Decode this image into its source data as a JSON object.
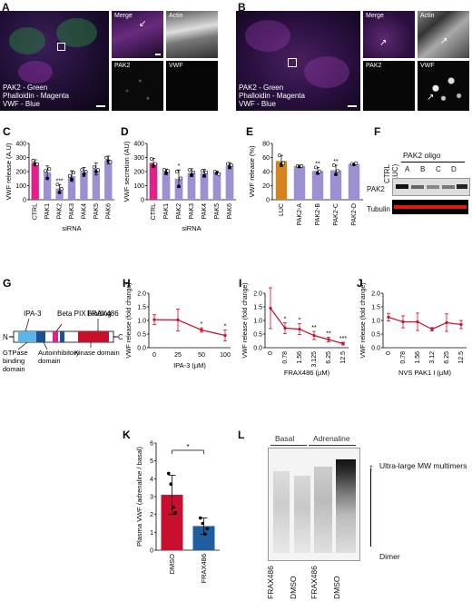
{
  "panels": {
    "A": {
      "letter": "A",
      "main_legend": [
        "PAK2 - Green",
        "Phalloidin - Magenta",
        "VWF - Blue"
      ],
      "sub_titles": [
        "Merge",
        "Actin",
        "PAK2",
        "VWF"
      ]
    },
    "B": {
      "letter": "B",
      "main_legend": [
        "PAK2 - Green",
        "Phalloidin - Magenta",
        "VWF - Blue"
      ],
      "sub_titles": [
        "Merge",
        "Actin",
        "PAK2",
        "VWF"
      ]
    },
    "C": {
      "letter": "C",
      "ylabel": "VWF release (A.U)",
      "xlabel": "siRNA",
      "yticks": [
        "0",
        "100",
        "200",
        "300",
        "400"
      ],
      "categories": [
        "CTRL",
        "PAK1",
        "PAK2",
        "PAK3",
        "PAK4",
        "PAK5",
        "PAK6"
      ],
      "sig": [
        "",
        "",
        "***",
        "",
        "",
        "",
        ""
      ]
    },
    "D": {
      "letter": "D",
      "ylabel": "VWF secretion (AU)",
      "xlabel": "siRNA",
      "yticks": [
        "0",
        "100",
        "200",
        "300",
        "400"
      ],
      "categories": [
        "CTRL",
        "PAK1",
        "PAK2",
        "PAK3",
        "PAK4",
        "PAK5",
        "PAK6"
      ],
      "sig": [
        "",
        "",
        "*",
        "",
        "",
        "",
        ""
      ]
    },
    "E": {
      "letter": "E",
      "ylabel": "VWF release (%)",
      "yticks": [
        "0",
        "20",
        "40",
        "60",
        "80"
      ],
      "categories": [
        "LUC",
        "PAK2-A",
        "PAK2-B",
        "PAK2-C",
        "PAK2-D"
      ],
      "sig": [
        "",
        "",
        "**",
        "**",
        ""
      ]
    },
    "F": {
      "letter": "F",
      "ctrl_label": "CTRL (LUC)",
      "oligo_label": "PAK2 oligo",
      "lanes": [
        "A",
        "B",
        "C",
        "D"
      ],
      "row_labels": [
        "PAK2",
        "Tubulin"
      ]
    },
    "G": {
      "letter": "G",
      "labels": {
        "n": "N",
        "c": "C",
        "ipa3": "IPA-3",
        "betapix": "Beta PIX binding",
        "frax": "FRAX486",
        "gtpase": "GTPase binding domain",
        "auto": "Autoinhibitory domain",
        "kinase": "Kinase domain"
      }
    },
    "H": {
      "letter": "H",
      "ylabel": "VWF release (fold change)",
      "xlabel": "IPA-3 (µM)",
      "yticks": [
        "0.0",
        "0.5",
        "1.0",
        "1.5",
        "2.0"
      ],
      "xticks": [
        "0",
        "25",
        "50",
        "100"
      ],
      "sig": [
        "",
        "",
        "*",
        "*"
      ]
    },
    "I": {
      "letter": "I",
      "ylabel": "VWF release (fold change)",
      "xlabel": "FRAX486 (µM)",
      "yticks": [
        "0.0",
        "0.5",
        "1.0",
        "1.5",
        "2.0"
      ],
      "xticks": [
        "0",
        "0.78",
        "1.56",
        "3.125",
        "6.25",
        "12.5"
      ],
      "sig": [
        "",
        "*",
        "*",
        "**",
        "**",
        "***"
      ]
    },
    "J": {
      "letter": "J",
      "ylabel": "VWF release (fold change)",
      "xlabel": "NVS PAK1 I (µM)",
      "yticks": [
        "0.0",
        "0.5",
        "1.0",
        "1.5",
        "2.0"
      ],
      "xticks": [
        "0",
        "0.78",
        "1.56",
        "3.12",
        "6.25",
        "12.5"
      ]
    },
    "K": {
      "letter": "K",
      "ylabel": "Plasma VWF (adrenaline / basal)",
      "yticks": [
        "0",
        "1",
        "2",
        "3",
        "4",
        "5",
        "6"
      ],
      "categories": [
        "DMSO",
        "FRAX486"
      ],
      "sig": "*"
    },
    "L": {
      "letter": "L",
      "basal": "Basal",
      "adrenaline": "Adrenaline",
      "lanes": [
        "FRAX486",
        "DMSO",
        "FRAX486",
        "DMSO"
      ],
      "arrow_label": "Ultra-large MW multimers",
      "dimer_label": "Dimer"
    }
  },
  "chart_data": [
    {
      "panel": "C",
      "type": "bar",
      "categories": [
        "CTRL",
        "PAK1",
        "PAK2",
        "PAK3",
        "PAK4",
        "PAK5",
        "PAK6"
      ],
      "values": [
        262,
        195,
        80,
        168,
        198,
        218,
        282
      ],
      "errors": [
        22,
        45,
        28,
        38,
        32,
        42,
        28
      ],
      "points": [
        [
          278,
          255,
          252
        ],
        [
          205,
          152,
          218
        ],
        [
          108,
          52,
          78
        ],
        [
          170,
          145,
          192
        ],
        [
          212,
          180,
          200
        ],
        [
          232,
          200,
          212
        ],
        [
          298,
          275,
          268
        ]
      ],
      "colors": [
        "#e0218a",
        "#9d8fd1",
        "#9d8fd1",
        "#9d8fd1",
        "#9d8fd1",
        "#9d8fd1",
        "#9d8fd1"
      ],
      "ylim": [
        0,
        400
      ],
      "ylabel": "VWF release (A.U)",
      "xlabel": "siRNA"
    },
    {
      "panel": "D",
      "type": "bar",
      "categories": [
        "CTRL",
        "PAK1",
        "PAK2",
        "PAK3",
        "PAK4",
        "PAK5",
        "PAK6"
      ],
      "values": [
        262,
        198,
        150,
        192,
        188,
        192,
        242
      ],
      "errors": [
        32,
        20,
        62,
        28,
        28,
        12,
        22
      ],
      "points": [
        [
          290,
          240,
          255
        ],
        [
          212,
          190,
          205
        ],
        [
          200,
          95,
          152
        ],
        [
          212,
          175,
          195
        ],
        [
          205,
          170,
          195
        ],
        [
          200,
          190,
          182
        ],
        [
          255,
          232,
          245
        ]
      ],
      "colors": [
        "#e0218a",
        "#9d8fd1",
        "#9d8fd1",
        "#9d8fd1",
        "#9d8fd1",
        "#9d8fd1",
        "#9d8fd1"
      ],
      "ylim": [
        0,
        400
      ],
      "ylabel": "VWF secretion (AU)",
      "xlabel": "siRNA"
    },
    {
      "panel": "E",
      "type": "bar",
      "categories": [
        "LUC",
        "PAK2-A",
        "PAK2-B",
        "PAK2-C",
        "PAK2-D"
      ],
      "values": [
        55,
        48,
        41,
        42,
        51
      ],
      "errors": [
        8,
        1,
        5,
        7,
        1
      ],
      "points": [
        [
          63,
          50,
          52
        ],
        [
          48,
          47,
          48
        ],
        [
          46,
          38,
          40
        ],
        [
          49,
          36,
          41
        ],
        [
          51,
          50,
          52
        ]
      ],
      "colors": [
        "#d4841e",
        "#9d8fd1",
        "#9d8fd1",
        "#9d8fd1",
        "#9d8fd1"
      ],
      "ylim": [
        0,
        80
      ],
      "ylabel": "VWF release (%)"
    },
    {
      "panel": "H",
      "type": "line",
      "x": [
        "0",
        "25",
        "50",
        "100"
      ],
      "values": [
        1.03,
        1.02,
        0.65,
        0.45
      ],
      "errors": [
        0.18,
        0.4,
        0.08,
        0.2
      ],
      "ylim": [
        0,
        2
      ],
      "ylabel": "VWF release (fold change)",
      "xlabel": "IPA-3 (µM)"
    },
    {
      "panel": "I",
      "type": "line",
      "x": [
        "0",
        "0.78",
        "1.56",
        "3.125",
        "6.25",
        "12.5"
      ],
      "values": [
        1.45,
        0.72,
        0.68,
        0.45,
        0.3,
        0.15
      ],
      "errors": [
        0.75,
        0.2,
        0.2,
        0.15,
        0.08,
        0.05
      ],
      "ylim": [
        0,
        2
      ],
      "ylabel": "VWF release (fold change)",
      "xlabel": "FRAX486 (µM)"
    },
    {
      "panel": "J",
      "type": "line",
      "x": [
        "0",
        "0.78",
        "1.56",
        "3.12",
        "6.25",
        "12.5"
      ],
      "values": [
        1.12,
        0.95,
        0.95,
        0.68,
        0.92,
        0.85
      ],
      "errors": [
        0.14,
        0.22,
        0.32,
        0.06,
        0.32,
        0.15
      ],
      "ylim": [
        0,
        2
      ],
      "ylabel": "VWF release (fold change)",
      "xlabel": "NVS PAK1 I (µM)"
    },
    {
      "panel": "K",
      "type": "bar",
      "categories": [
        "DMSO",
        "FRAX486"
      ],
      "values": [
        3.1,
        1.35
      ],
      "errors": [
        1.1,
        0.45
      ],
      "points": [
        [
          4.3,
          3.7,
          2.4,
          2.1
        ],
        [
          1.8,
          1.5,
          0.9,
          1.2
        ]
      ],
      "colors": [
        "#c8102e",
        "#1f5fa0"
      ],
      "ylim": [
        0,
        6
      ],
      "ylabel": "Plasma VWF (adrenaline / basal)"
    }
  ]
}
